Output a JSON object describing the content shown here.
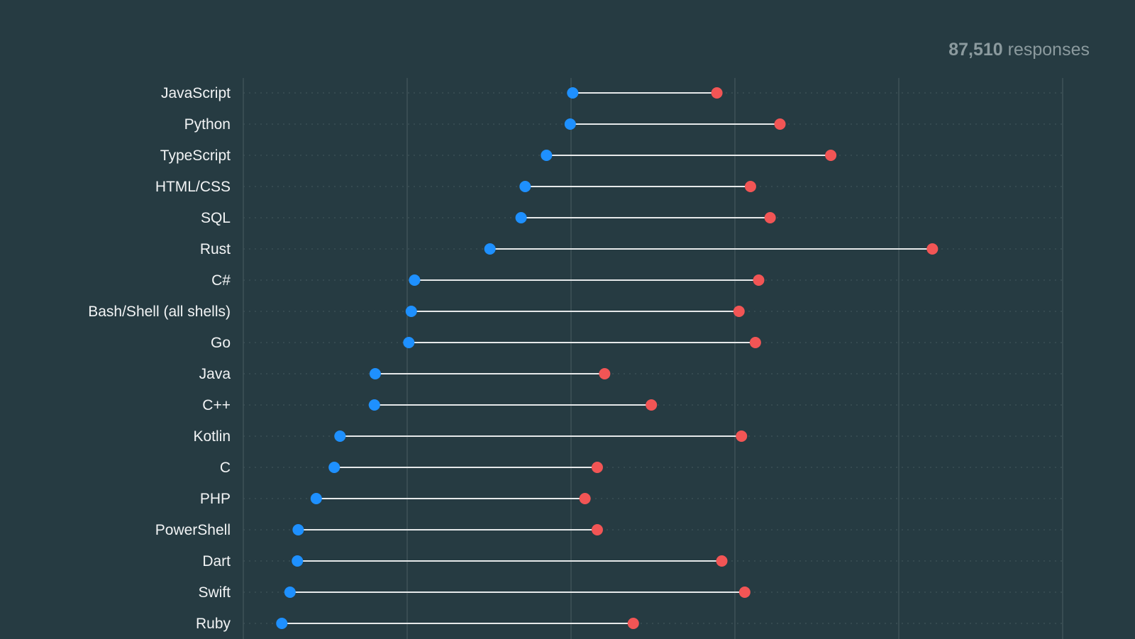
{
  "header": {
    "response_count": "87,510",
    "response_suffix": " responses"
  },
  "colors": {
    "background": "#263b42",
    "start_dot": "#1e90ff",
    "end_dot": "#f25555",
    "connector": "#e6e9ea",
    "gridline": "#4a5c62",
    "dotted_guide": "#3f535a",
    "label": "#f2f4f5",
    "muted_text": "#8b9a9e"
  },
  "chart_data": {
    "type": "dumbbell",
    "title": "",
    "xlabel": "",
    "ylabel": "",
    "xlim": [
      0,
      100
    ],
    "grid": true,
    "legend": "none",
    "series": [
      {
        "name": "start",
        "color": "#1e90ff"
      },
      {
        "name": "end",
        "color": "#f25555"
      }
    ],
    "categories": [
      "JavaScript",
      "Python",
      "TypeScript",
      "HTML/CSS",
      "SQL",
      "Rust",
      "C#",
      "Bash/Shell (all shells)",
      "Go",
      "Java",
      "C++",
      "Kotlin",
      "C",
      "PHP",
      "PowerShell",
      "Dart",
      "Swift",
      "Ruby"
    ],
    "start": [
      40.2,
      39.9,
      37.0,
      34.4,
      33.9,
      30.1,
      20.9,
      20.5,
      20.2,
      16.1,
      16.0,
      11.8,
      11.1,
      8.9,
      6.7,
      6.6,
      5.7,
      4.7
    ],
    "end": [
      57.8,
      65.5,
      71.7,
      61.9,
      64.3,
      84.1,
      62.9,
      60.5,
      62.5,
      44.1,
      49.8,
      60.8,
      43.2,
      41.7,
      43.2,
      58.4,
      61.2,
      47.6
    ]
  }
}
